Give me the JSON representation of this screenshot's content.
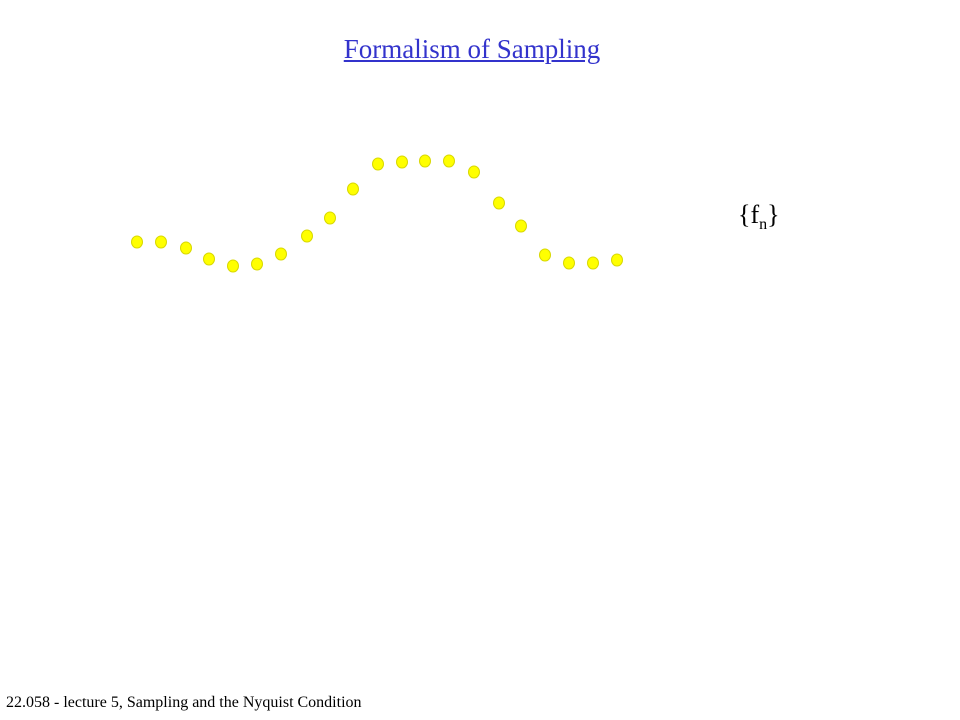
{
  "header": {
    "title": "Formalism of Sampling"
  },
  "label": {
    "base": "{f",
    "subscript": "n",
    "close": "}"
  },
  "footer": {
    "text": "22.058 - lecture 5, Sampling and the Nyquist Condition"
  }
}
